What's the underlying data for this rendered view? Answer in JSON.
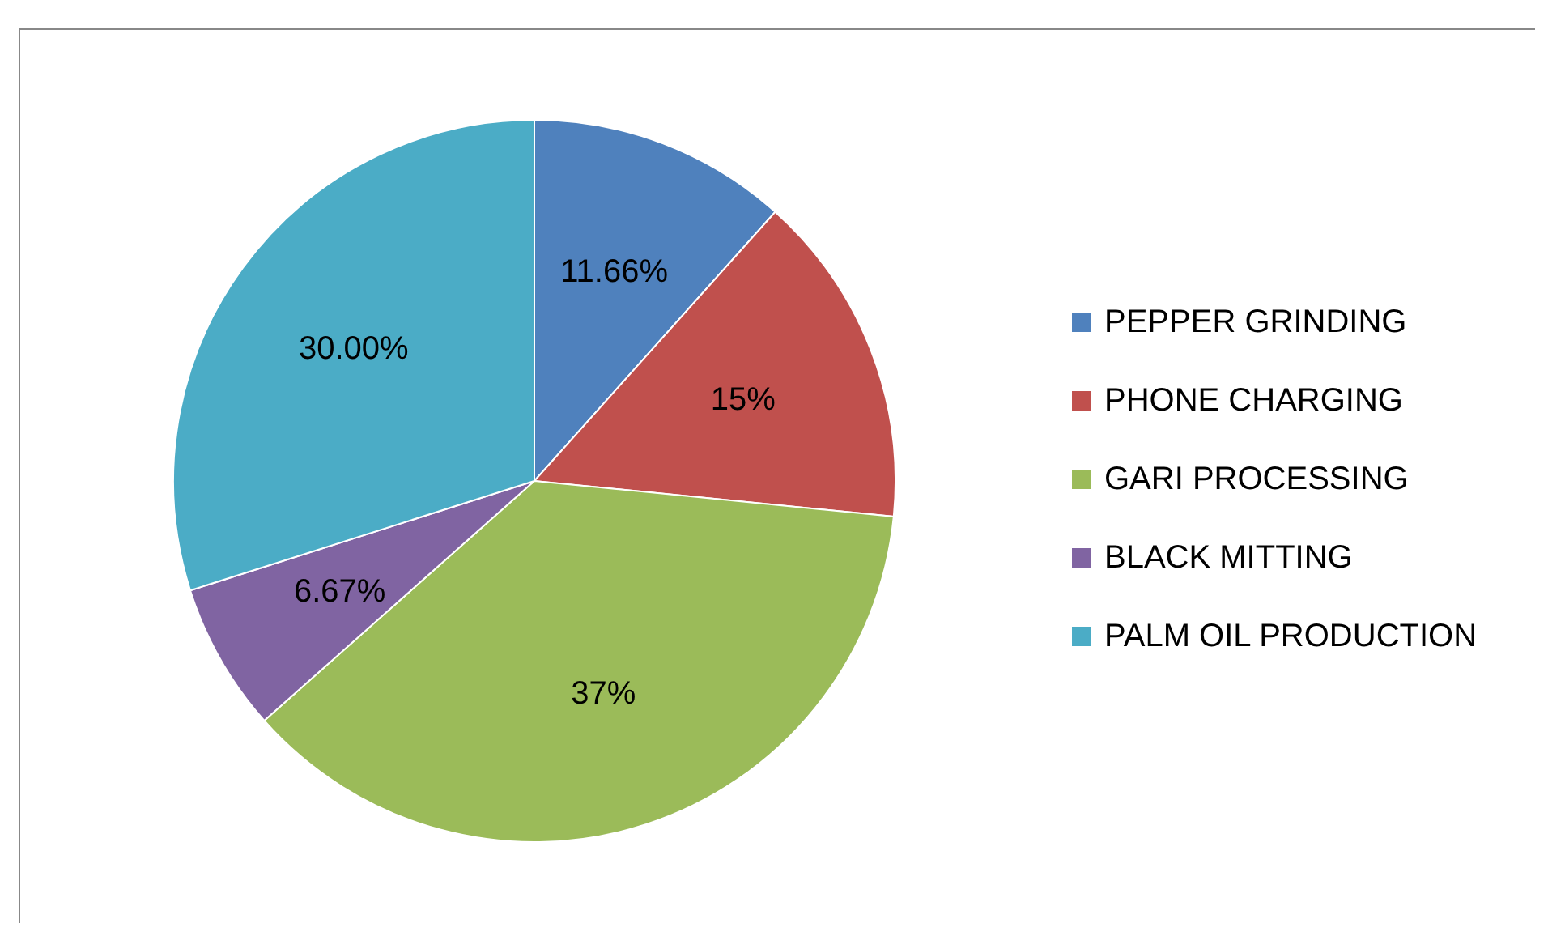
{
  "chart_data": {
    "type": "pie",
    "categories": [
      "PEPPER GRINDING",
      "PHONE CHARGING",
      "GARI PROCESSING",
      "BLACK MITTING",
      "PALM OIL PRODUCTION"
    ],
    "values": [
      11.66,
      15,
      37,
      6.67,
      30
    ],
    "value_labels": [
      "11.66%",
      "15%",
      "37%",
      "6.67%",
      "30.00%"
    ],
    "colors": [
      "#4f81bd",
      "#c0504d",
      "#9bbb59",
      "#8064a2",
      "#4bacc6"
    ],
    "legend": "right"
  }
}
